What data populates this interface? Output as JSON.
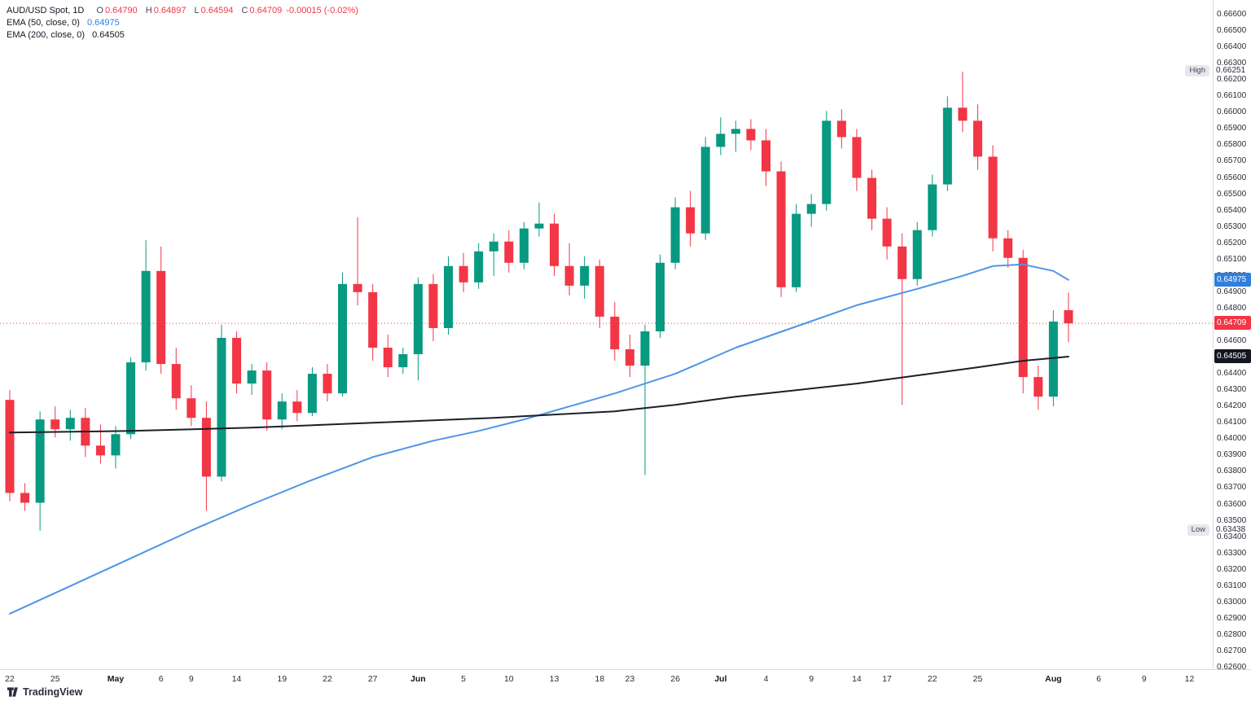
{
  "header": {
    "symbol": "AUD/USD Spot, 1D",
    "ohlc": {
      "o_label": "O",
      "o": "0.64790",
      "h_label": "H",
      "h": "0.64897",
      "l_label": "L",
      "l": "0.64594",
      "c_label": "C",
      "c": "0.64709",
      "change": "-0.00015 (-0.02%)"
    },
    "indicators": [
      {
        "name": "EMA (50, close, 0)",
        "value": "0.64975",
        "color": "#2e7fe0"
      },
      {
        "name": "EMA (200, close, 0)",
        "value": "0.64505",
        "color": "#131722"
      }
    ]
  },
  "footer": {
    "logo_text": "TradingView"
  },
  "chart_data": {
    "type": "candlestick",
    "title": "AUD/USD Spot, 1D",
    "up_color": "#089981",
    "down_color": "#f23645",
    "y_axis": {
      "min": 0.626,
      "max": 0.666,
      "step": 0.001,
      "decimals": 5
    },
    "last_price": 0.64709,
    "high": 0.66251,
    "low": 0.63438,
    "x_ticks": [
      {
        "i": 0,
        "label": "22"
      },
      {
        "i": 3,
        "label": "25"
      },
      {
        "i": 7,
        "label": "May"
      },
      {
        "i": 10,
        "label": "6"
      },
      {
        "i": 12,
        "label": "9"
      },
      {
        "i": 15,
        "label": "14"
      },
      {
        "i": 18,
        "label": "19"
      },
      {
        "i": 21,
        "label": "22"
      },
      {
        "i": 24,
        "label": "27"
      },
      {
        "i": 27,
        "label": "Jun"
      },
      {
        "i": 30,
        "label": "5"
      },
      {
        "i": 33,
        "label": "10"
      },
      {
        "i": 36,
        "label": "13"
      },
      {
        "i": 39,
        "label": "18"
      },
      {
        "i": 41,
        "label": "23"
      },
      {
        "i": 44,
        "label": "26"
      },
      {
        "i": 47,
        "label": "Jul"
      },
      {
        "i": 50,
        "label": "4"
      },
      {
        "i": 53,
        "label": "9"
      },
      {
        "i": 56,
        "label": "14"
      },
      {
        "i": 58,
        "label": "17"
      },
      {
        "i": 61,
        "label": "22"
      },
      {
        "i": 64,
        "label": "25"
      },
      {
        "i": 69,
        "label": "Aug"
      },
      {
        "i": 72,
        "label": "6"
      },
      {
        "i": 75,
        "label": "9"
      },
      {
        "i": 78,
        "label": "12"
      }
    ],
    "candles": [
      [
        0.6424,
        0.643,
        0.6362,
        0.6367
      ],
      [
        0.6367,
        0.6373,
        0.6356,
        0.6361
      ],
      [
        0.6361,
        0.6417,
        0.63438,
        0.6412
      ],
      [
        0.6412,
        0.642,
        0.6401,
        0.6406
      ],
      [
        0.6406,
        0.6418,
        0.6399,
        0.6413
      ],
      [
        0.6413,
        0.6419,
        0.6389,
        0.6396
      ],
      [
        0.6396,
        0.6409,
        0.6385,
        0.639
      ],
      [
        0.639,
        0.6408,
        0.6382,
        0.6403
      ],
      [
        0.6403,
        0.645,
        0.64,
        0.6447
      ],
      [
        0.6447,
        0.6522,
        0.6442,
        0.6503
      ],
      [
        0.6503,
        0.6518,
        0.644,
        0.6446
      ],
      [
        0.6446,
        0.6456,
        0.6418,
        0.6425
      ],
      [
        0.6425,
        0.6433,
        0.6408,
        0.6413
      ],
      [
        0.6413,
        0.6423,
        0.6356,
        0.6377
      ],
      [
        0.6377,
        0.647,
        0.6374,
        0.6462
      ],
      [
        0.6462,
        0.6466,
        0.6428,
        0.6434
      ],
      [
        0.6434,
        0.6446,
        0.6427,
        0.6442
      ],
      [
        0.6442,
        0.6447,
        0.6405,
        0.6412
      ],
      [
        0.6412,
        0.6428,
        0.6406,
        0.6423
      ],
      [
        0.6423,
        0.643,
        0.6411,
        0.6416
      ],
      [
        0.6416,
        0.6444,
        0.6414,
        0.644
      ],
      [
        0.644,
        0.6446,
        0.6423,
        0.6428
      ],
      [
        0.6428,
        0.6502,
        0.6426,
        0.6495
      ],
      [
        0.6495,
        0.6536,
        0.6482,
        0.649
      ],
      [
        0.649,
        0.6495,
        0.6448,
        0.6456
      ],
      [
        0.6456,
        0.6464,
        0.6438,
        0.6444
      ],
      [
        0.6444,
        0.6456,
        0.644,
        0.6452
      ],
      [
        0.6452,
        0.6499,
        0.6436,
        0.6495
      ],
      [
        0.6495,
        0.6501,
        0.646,
        0.6468
      ],
      [
        0.6468,
        0.6512,
        0.6464,
        0.6506
      ],
      [
        0.6506,
        0.6514,
        0.649,
        0.6496
      ],
      [
        0.6496,
        0.652,
        0.6492,
        0.6515
      ],
      [
        0.6515,
        0.6526,
        0.65,
        0.6521
      ],
      [
        0.6521,
        0.6528,
        0.6502,
        0.6508
      ],
      [
        0.6508,
        0.6533,
        0.6504,
        0.6529
      ],
      [
        0.6529,
        0.6545,
        0.6524,
        0.6532
      ],
      [
        0.6532,
        0.6538,
        0.65,
        0.6506
      ],
      [
        0.6506,
        0.652,
        0.6488,
        0.6494
      ],
      [
        0.6494,
        0.6512,
        0.6486,
        0.6506
      ],
      [
        0.6506,
        0.651,
        0.6468,
        0.6475
      ],
      [
        0.6475,
        0.6484,
        0.6448,
        0.6455
      ],
      [
        0.6455,
        0.6464,
        0.6438,
        0.6445
      ],
      [
        0.6445,
        0.647,
        0.6378,
        0.6466
      ],
      [
        0.6466,
        0.6513,
        0.6462,
        0.6508
      ],
      [
        0.6508,
        0.6548,
        0.6504,
        0.6542
      ],
      [
        0.6542,
        0.6552,
        0.6518,
        0.6526
      ],
      [
        0.6526,
        0.6585,
        0.6522,
        0.6579
      ],
      [
        0.6579,
        0.6597,
        0.6574,
        0.6587
      ],
      [
        0.6587,
        0.6595,
        0.6576,
        0.659
      ],
      [
        0.659,
        0.6596,
        0.6577,
        0.6583
      ],
      [
        0.6583,
        0.659,
        0.6555,
        0.6564
      ],
      [
        0.6564,
        0.657,
        0.6487,
        0.6493
      ],
      [
        0.6493,
        0.6544,
        0.649,
        0.6538
      ],
      [
        0.6538,
        0.655,
        0.653,
        0.6544
      ],
      [
        0.6544,
        0.6601,
        0.654,
        0.6595
      ],
      [
        0.6595,
        0.6602,
        0.6578,
        0.6585
      ],
      [
        0.6585,
        0.659,
        0.6552,
        0.656
      ],
      [
        0.656,
        0.6565,
        0.6528,
        0.6535
      ],
      [
        0.6535,
        0.6542,
        0.651,
        0.6518
      ],
      [
        0.6518,
        0.6526,
        0.6421,
        0.6498
      ],
      [
        0.6498,
        0.6533,
        0.6494,
        0.6528
      ],
      [
        0.6528,
        0.6562,
        0.6524,
        0.6556
      ],
      [
        0.6556,
        0.661,
        0.6552,
        0.6603
      ],
      [
        0.6603,
        0.66251,
        0.6588,
        0.6595
      ],
      [
        0.6595,
        0.6605,
        0.6565,
        0.6573
      ],
      [
        0.6573,
        0.658,
        0.6515,
        0.6523
      ],
      [
        0.6523,
        0.6528,
        0.6505,
        0.6511
      ],
      [
        0.6511,
        0.6516,
        0.6428,
        0.6438
      ],
      [
        0.6438,
        0.6445,
        0.6418,
        0.6426
      ],
      [
        0.6426,
        0.6479,
        0.642,
        0.6472
      ],
      [
        0.6479,
        0.64897,
        0.64594,
        0.64709
      ]
    ],
    "series": [
      {
        "name": "EMA 50",
        "color": "#4f94e8",
        "points": [
          [
            0,
            0.6293
          ],
          [
            4,
            0.631
          ],
          [
            8,
            0.6327
          ],
          [
            12,
            0.6344
          ],
          [
            16,
            0.636
          ],
          [
            20,
            0.6375
          ],
          [
            24,
            0.6389
          ],
          [
            28,
            0.6399
          ],
          [
            31,
            0.6405
          ],
          [
            34,
            0.6412
          ],
          [
            37,
            0.642
          ],
          [
            40,
            0.6428
          ],
          [
            44,
            0.644
          ],
          [
            48,
            0.6456
          ],
          [
            52,
            0.6469
          ],
          [
            56,
            0.6482
          ],
          [
            60,
            0.6492
          ],
          [
            63,
            0.65
          ],
          [
            65,
            0.6506
          ],
          [
            67,
            0.6507
          ],
          [
            69,
            0.6503
          ],
          [
            70,
            0.64975
          ]
        ]
      },
      {
        "name": "EMA 200",
        "color": "#1b1f27",
        "points": [
          [
            0,
            0.6404
          ],
          [
            8,
            0.6405
          ],
          [
            16,
            0.6407
          ],
          [
            24,
            0.641
          ],
          [
            32,
            0.6413
          ],
          [
            40,
            0.6417
          ],
          [
            44,
            0.6421
          ],
          [
            48,
            0.6426
          ],
          [
            52,
            0.643
          ],
          [
            56,
            0.6434
          ],
          [
            60,
            0.6439
          ],
          [
            64,
            0.6444
          ],
          [
            67,
            0.6448
          ],
          [
            70,
            0.64505
          ]
        ]
      }
    ],
    "axis_badges": [
      {
        "name": "ema50-price-badge",
        "price": 0.64975,
        "text": "0.64975",
        "bg": "#2e7fe0"
      },
      {
        "name": "last-price-badge",
        "price": 0.64709,
        "text": "0.64709",
        "bg": "#f23645"
      },
      {
        "name": "ema200-price-badge",
        "price": 0.64505,
        "text": "0.64505",
        "bg": "#131722"
      }
    ],
    "range_labels": [
      {
        "name": "high-label",
        "label": "High",
        "value": "0.66251",
        "price": 0.66251
      },
      {
        "name": "low-label",
        "label": "Low",
        "value": "0.63438",
        "price": 0.63438
      }
    ]
  }
}
